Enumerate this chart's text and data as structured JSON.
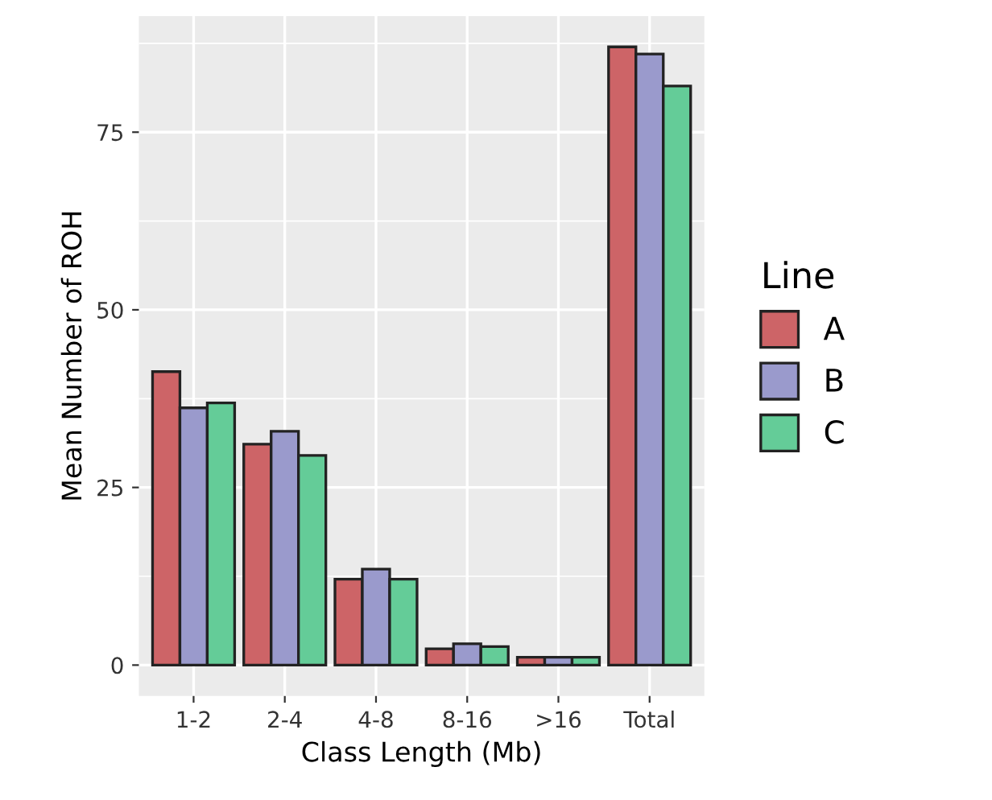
{
  "chart_data": {
    "type": "bar",
    "xlabel": "Class Length (Mb)",
    "ylabel": "Mean Number of ROH",
    "legend_title": "Line",
    "categories": [
      "1-2",
      "2-4",
      "4-8",
      "8-16",
      ">16",
      "Total"
    ],
    "series": [
      {
        "name": "A",
        "color": "#cd6467",
        "values": [
          41.3,
          31.1,
          12.1,
          2.3,
          1.1,
          87.0
        ]
      },
      {
        "name": "B",
        "color": "#9a9acc",
        "values": [
          36.2,
          32.9,
          13.5,
          3.0,
          1.1,
          86.0
        ]
      },
      {
        "name": "C",
        "color": "#64cc98",
        "values": [
          36.9,
          29.5,
          12.1,
          2.6,
          1.1,
          81.5
        ]
      }
    ],
    "ylim": [
      -4.35,
      91.35
    ],
    "yticks": [
      0,
      25,
      50,
      75
    ],
    "grid": true,
    "legend": "right"
  }
}
